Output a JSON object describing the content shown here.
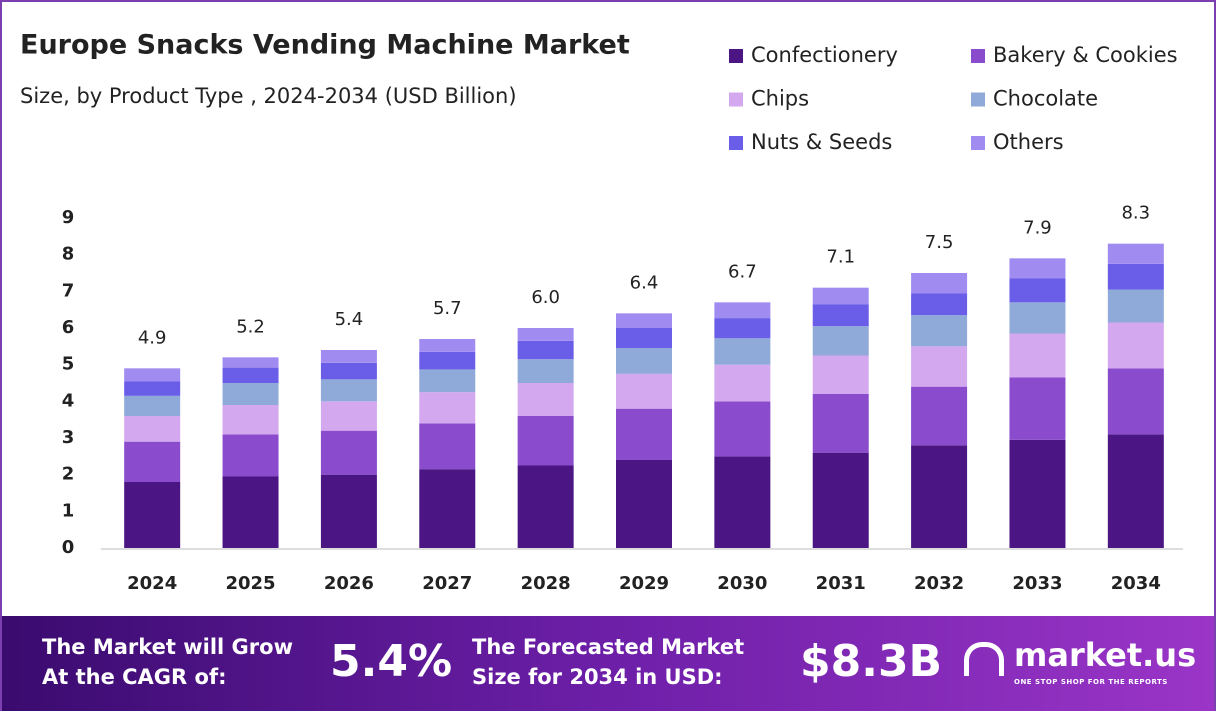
{
  "chart_data": {
    "type": "stacked_bar",
    "title": "Europe Snacks Vending Machine Market",
    "subtitle": "Size, by Product Type , 2024-2034 (USD Billion)",
    "categories": [
      "2024",
      "2025",
      "2026",
      "2027",
      "2028",
      "2029",
      "2030",
      "2031",
      "2032",
      "2033",
      "2034"
    ],
    "series": [
      {
        "name": "Confectionery",
        "color": "#4b1684",
        "values": [
          1.8,
          1.95,
          2.0,
          2.15,
          2.25,
          2.4,
          2.5,
          2.6,
          2.8,
          2.95,
          3.1
        ]
      },
      {
        "name": "Bakery & Cookies",
        "color": "#8a4bcc",
        "values": [
          1.1,
          1.15,
          1.2,
          1.25,
          1.35,
          1.4,
          1.5,
          1.6,
          1.6,
          1.7,
          1.8
        ]
      },
      {
        "name": "Chips",
        "color": "#d3a8ef",
        "values": [
          0.7,
          0.8,
          0.8,
          0.85,
          0.9,
          0.95,
          1.0,
          1.05,
          1.1,
          1.2,
          1.25
        ]
      },
      {
        "name": "Chocolate",
        "color": "#8fa9d8",
        "values": [
          0.55,
          0.6,
          0.6,
          0.62,
          0.65,
          0.7,
          0.72,
          0.8,
          0.85,
          0.85,
          0.9
        ]
      },
      {
        "name": "Nuts & Seeds",
        "color": "#6a5de8",
        "values": [
          0.4,
          0.42,
          0.45,
          0.48,
          0.5,
          0.55,
          0.55,
          0.6,
          0.6,
          0.65,
          0.7
        ]
      },
      {
        "name": "Others",
        "color": "#a08cf0",
        "values": [
          0.35,
          0.28,
          0.35,
          0.35,
          0.35,
          0.4,
          0.43,
          0.45,
          0.55,
          0.55,
          0.55
        ]
      }
    ],
    "totals": [
      4.9,
      5.2,
      5.4,
      5.7,
      6.0,
      6.4,
      6.7,
      7.1,
      7.5,
      7.9,
      8.3
    ],
    "total_value_labels": [
      "4.9",
      "5.2",
      "5.4",
      "5.7",
      "6.0",
      "6.4",
      "6.7",
      "7.1",
      "7.5",
      "7.9",
      "8.3"
    ],
    "ylim": [
      0,
      9
    ],
    "yticks": [
      0,
      1,
      2,
      3,
      4,
      5,
      6,
      7,
      8,
      9
    ]
  },
  "banner": {
    "cagr_text": "The Market will Grow At the CAGR of:",
    "cagr": "5.4%",
    "forecast_text": "The Forecasted Market Size for 2034 in USD:",
    "forecast": "$8.3B",
    "brand": "market.us",
    "tagline": "ONE STOP SHOP FOR THE REPORTS"
  }
}
